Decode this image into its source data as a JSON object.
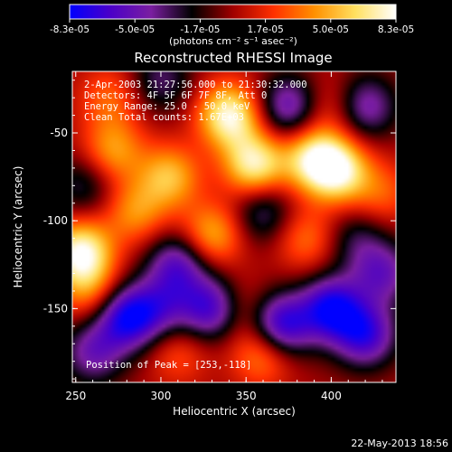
{
  "chart_data": {
    "type": "heatmap",
    "title": "Reconstructed RHESSI Image",
    "xlabel": "Heliocentric X (arcsec)",
    "ylabel": "Heliocentric Y (arcsec)",
    "xlim": [
      248,
      438
    ],
    "ylim": [
      -192,
      -15
    ],
    "x_ticks": [
      "250",
      "300",
      "350",
      "400"
    ],
    "y_ticks": [
      "-50",
      "-100",
      "-150"
    ],
    "colorbar": {
      "min": -8.3e-05,
      "max": 8.3e-05,
      "tick_labels": [
        "-8.3e-05",
        "-5.0e-05",
        "-1.7e-05",
        "1.7e-05",
        "5.0e-05",
        "8.3e-05"
      ],
      "unit_label": "(photons cm⁻² s⁻¹ asec⁻²)",
      "colors": [
        "#0000ff",
        "#4b00c8",
        "#7a1ea0",
        "#000000",
        "#a00000",
        "#ff3000",
        "#ff9000",
        "#ffe060",
        "#ffffff"
      ]
    },
    "sources": [
      {
        "x": 253,
        "y": -118,
        "v": 8e-05
      },
      {
        "x": 340,
        "y": -40,
        "v": 7.8e-05
      },
      {
        "x": 355,
        "y": -68,
        "v": 7.4e-05
      },
      {
        "x": 390,
        "y": -65,
        "v": 6.8e-05
      },
      {
        "x": 405,
        "y": -72,
        "v": 6.6e-05
      },
      {
        "x": 305,
        "y": -75,
        "v": 5.2e-05
      },
      {
        "x": 330,
        "y": -108,
        "v": 5e-05
      },
      {
        "x": 272,
        "y": -60,
        "v": 4.4e-05
      },
      {
        "x": 285,
        "y": -95,
        "v": 4e-05
      },
      {
        "x": 258,
        "y": -140,
        "v": 3.6e-05
      },
      {
        "x": 360,
        "y": -175,
        "v": 4.6e-05
      },
      {
        "x": 385,
        "y": -110,
        "v": 3.4e-05
      },
      {
        "x": 345,
        "y": -150,
        "v": 2.6e-05
      },
      {
        "x": 400,
        "y": -35,
        "v": 2.4e-05
      },
      {
        "x": 430,
        "y": -85,
        "v": 2.8e-05
      },
      {
        "x": 310,
        "y": -175,
        "v": 2.6e-05
      },
      {
        "x": 270,
        "y": -30,
        "v": 3e-05
      },
      {
        "x": 280,
        "y": -155,
        "v": -7.5e-05
      },
      {
        "x": 330,
        "y": -150,
        "v": -7e-05
      },
      {
        "x": 370,
        "y": -160,
        "v": -7.8e-05
      },
      {
        "x": 400,
        "y": -150,
        "v": -7.6e-05
      },
      {
        "x": 420,
        "y": -165,
        "v": -6.5e-05
      },
      {
        "x": 375,
        "y": -35,
        "v": -5.4e-05
      },
      {
        "x": 420,
        "y": -35,
        "v": -5e-05
      },
      {
        "x": 310,
        "y": -125,
        "v": -5.6e-05
      },
      {
        "x": 260,
        "y": -175,
        "v": -4.6e-05
      },
      {
        "x": 430,
        "y": -130,
        "v": -4.8e-05
      },
      {
        "x": 360,
        "y": -95,
        "v": -3.8e-05
      },
      {
        "x": 255,
        "y": -80,
        "v": -3e-05
      },
      {
        "x": 300,
        "y": -20,
        "v": -3.4e-05
      },
      {
        "x": 415,
        "y": -110,
        "v": -2.8e-05
      },
      {
        "x": 300,
        "y": -150,
        "v": -4e-05
      }
    ],
    "annotations": [
      " 2-Apr-2003 21:27:56.000 to 21:30:32.000",
      "Detectors: 4F 5F 6F 7F 8F, Att 0",
      "Energy Range: 25.0 - 50.0 keV",
      "Clean     Total counts: 1.67E+03"
    ],
    "peak_label": "Position of Peak = [253,-118]",
    "footer_date": "22-May-2013 18:56"
  }
}
